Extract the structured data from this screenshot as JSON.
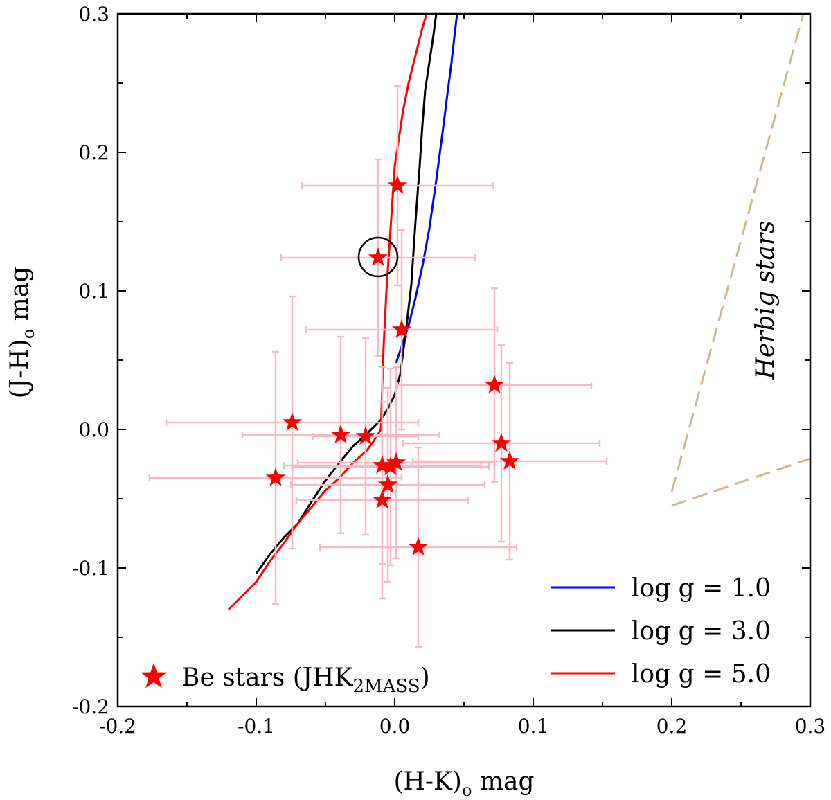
{
  "chart_data": {
    "type": "scatter",
    "title": "",
    "xlabel": "(H-K)o  mag",
    "ylabel": "(J-H)o  mag",
    "xlabel_main": "(H-K)",
    "xlabel_sub": "o",
    "xlabel_unit": "mag",
    "ylabel_main": "(J-H)",
    "ylabel_sub": "o",
    "ylabel_unit": "mag",
    "xlim": [
      -0.2,
      0.3
    ],
    "ylim": [
      -0.2,
      0.3
    ],
    "xticks": [
      -0.2,
      -0.1,
      0.0,
      0.1,
      0.2,
      0.3
    ],
    "yticks": [
      -0.2,
      -0.1,
      0.0,
      0.1,
      0.2,
      0.3
    ],
    "xtick_labels": [
      "-0.2",
      "-0.1",
      "0.0",
      "0.1",
      "0.2",
      "0.3"
    ],
    "ytick_labels": [
      "-0.2",
      "-0.1",
      "0.0",
      "0.1",
      "0.2",
      "0.3"
    ],
    "grid": false,
    "curves": [
      {
        "name": "log g = 1.0",
        "label": "log g = 1.0",
        "color": "#0000ff",
        "x": [
          0.001,
          0.005,
          0.01,
          0.015,
          0.02,
          0.025,
          0.03,
          0.035,
          0.038,
          0.041,
          0.043,
          0.045
        ],
        "y": [
          0.048,
          0.06,
          0.075,
          0.095,
          0.118,
          0.145,
          0.18,
          0.218,
          0.242,
          0.265,
          0.283,
          0.3
        ]
      },
      {
        "name": "log g = 3.0",
        "label": "log g = 3.0",
        "color": "#000000",
        "x": [
          -0.1,
          -0.09,
          -0.08,
          -0.07,
          -0.06,
          -0.05,
          -0.04,
          -0.03,
          -0.02,
          -0.01,
          -0.005,
          0.0,
          0.004,
          0.008,
          0.012,
          0.015,
          0.018,
          0.02,
          0.022,
          0.025,
          0.028,
          0.03
        ],
        "y": [
          -0.104,
          -0.09,
          -0.078,
          -0.068,
          -0.052,
          -0.037,
          -0.024,
          -0.012,
          -0.003,
          0.007,
          0.015,
          0.025,
          0.04,
          0.07,
          0.105,
          0.15,
          0.19,
          0.22,
          0.245,
          0.265,
          0.285,
          0.3
        ]
      },
      {
        "name": "log g = 5.0",
        "label": "log g = 5.0",
        "color": "#ff0000",
        "x": [
          -0.12,
          -0.11,
          -0.1,
          -0.09,
          -0.08,
          -0.07,
          -0.06,
          -0.05,
          -0.04,
          -0.03,
          -0.02,
          -0.015,
          -0.01,
          -0.008,
          -0.006,
          -0.004,
          -0.002,
          0.0,
          0.003,
          0.006,
          0.01,
          0.015,
          0.02,
          0.023
        ],
        "y": [
          -0.13,
          -0.12,
          -0.11,
          -0.095,
          -0.082,
          -0.068,
          -0.056,
          -0.044,
          -0.035,
          -0.024,
          -0.015,
          -0.008,
          0.0,
          0.06,
          0.1,
          0.13,
          0.16,
          0.19,
          0.21,
          0.23,
          0.25,
          0.27,
          0.29,
          0.3
        ]
      }
    ],
    "points": {
      "name": "Be stars (JHK2MASS)",
      "legend_main": "Be stars (JHK",
      "legend_sub": "2MASS",
      "legend_close": ")",
      "color": "#ff0000",
      "errorbar_color": "#f7b9c4",
      "data": [
        {
          "x": 0.002,
          "y": 0.176,
          "xerr": 0.069,
          "yerr": 0.072
        },
        {
          "x": -0.012,
          "y": 0.124,
          "xerr": 0.07,
          "yerr": 0.071
        },
        {
          "x": 0.005,
          "y": 0.072,
          "xerr": 0.069,
          "yerr": 0.072
        },
        {
          "x": 0.072,
          "y": 0.032,
          "xerr": 0.07,
          "yerr": 0.07
        },
        {
          "x": -0.074,
          "y": 0.005,
          "xerr": 0.091,
          "yerr": 0.091
        },
        {
          "x": -0.039,
          "y": -0.004,
          "xerr": 0.071,
          "yerr": 0.071
        },
        {
          "x": -0.021,
          "y": -0.005,
          "xerr": 0.038,
          "yerr": 0.071
        },
        {
          "x": 0.077,
          "y": -0.01,
          "xerr": 0.071,
          "yerr": 0.071
        },
        {
          "x": 0.083,
          "y": -0.023,
          "xerr": 0.07,
          "yerr": 0.071
        },
        {
          "x": -0.009,
          "y": -0.026,
          "xerr": 0.071,
          "yerr": 0.071
        },
        {
          "x": 0.001,
          "y": -0.024,
          "xerr": 0.071,
          "yerr": 0.069
        },
        {
          "x": -0.003,
          "y": -0.027,
          "xerr": 0.071,
          "yerr": 0.071
        },
        {
          "x": -0.086,
          "y": -0.035,
          "xerr": 0.091,
          "yerr": 0.091
        },
        {
          "x": -0.005,
          "y": -0.04,
          "xerr": 0.07,
          "yerr": 0.07
        },
        {
          "x": -0.009,
          "y": -0.051,
          "xerr": 0.062,
          "yerr": 0.071
        },
        {
          "x": 0.017,
          "y": -0.085,
          "xerr": 0.071,
          "yerr": 0.072
        }
      ]
    },
    "highlighted_point_index": 1,
    "herbig_region": {
      "label": "Herbig stars",
      "color": "#d2b48c",
      "lines": [
        {
          "x": [
            0.2,
            0.295
          ],
          "y": [
            -0.045,
            0.3
          ]
        },
        {
          "x": [
            0.2,
            0.3
          ],
          "y": [
            -0.055,
            -0.021
          ]
        }
      ]
    },
    "legend_position": "bottom-right"
  }
}
